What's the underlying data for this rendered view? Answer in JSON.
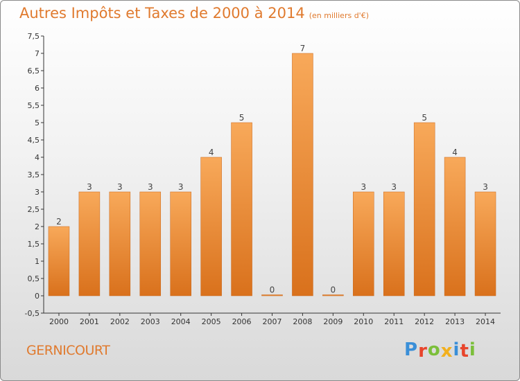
{
  "header": {
    "title": "Autres Impôts et Taxes de 2000 à 2014",
    "unit": "(en milliers d'€)"
  },
  "footer": {
    "commune": "GERNICOURT",
    "logo_letters": [
      "P",
      "r",
      "o",
      "x",
      "i",
      "t",
      "i"
    ],
    "logo_colors": [
      "#3a8fd8",
      "#e8452c",
      "#7bbf3a",
      "#f2b01e",
      "#3a8fd8",
      "#e8452c",
      "#7bbf3a"
    ]
  },
  "chart_data": {
    "type": "bar",
    "categories": [
      "2000",
      "2001",
      "2002",
      "2003",
      "2004",
      "2005",
      "2006",
      "2007",
      "2008",
      "2009",
      "2010",
      "2011",
      "2012",
      "2013",
      "2014"
    ],
    "values": [
      2,
      3,
      3,
      3,
      3,
      4,
      5,
      0,
      7,
      0,
      3,
      3,
      5,
      4,
      3
    ],
    "data_labels": [
      "2",
      "3",
      "3",
      "3",
      "3",
      "4",
      "5",
      "0",
      "7",
      "0",
      "3",
      "3",
      "5",
      "4",
      "3"
    ],
    "ylim": [
      -0.5,
      7.5
    ],
    "yticks": [
      "-0,5",
      "0",
      "0,5",
      "1",
      "1,5",
      "2",
      "2,5",
      "3",
      "3,5",
      "4",
      "4,5",
      "5",
      "5,5",
      "6",
      "6,5",
      "7",
      "7,5"
    ],
    "ytick_values": [
      -0.5,
      0,
      0.5,
      1,
      1.5,
      2,
      2.5,
      3,
      3.5,
      4,
      4.5,
      5,
      5.5,
      6,
      6.5,
      7,
      7.5
    ],
    "grid": false,
    "bar_color": "#f08a30"
  }
}
